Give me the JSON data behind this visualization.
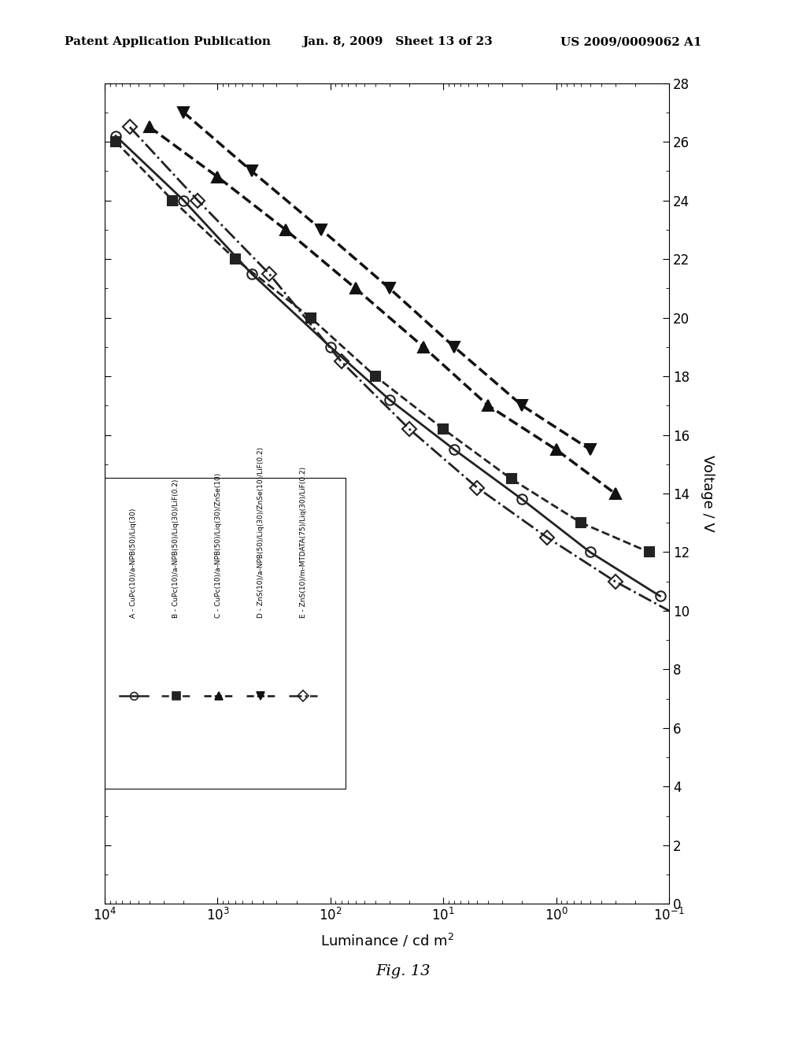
{
  "header_left": "Patent Application Publication",
  "header_mid": "Jan. 8, 2009   Sheet 13 of 23",
  "header_right": "US 2009/0009062 A1",
  "xlabel": "Luminance / cd m²",
  "ylabel": "Voltage / V",
  "fig_label": "Fig. 13",
  "ylim": [
    0,
    28
  ],
  "yticks": [
    0,
    2,
    4,
    6,
    8,
    10,
    12,
    14,
    16,
    18,
    20,
    22,
    24,
    26,
    28
  ],
  "series": [
    {
      "label": "A - CuPc(10)/a-NPB(50)/Liq(30)",
      "linestyle": "solid",
      "marker": "o",
      "color": "#222222",
      "luminance": [
        8000,
        2000,
        500,
        100,
        30,
        8.0,
        2.0,
        0.5,
        0.12
      ],
      "voltage": [
        26.2,
        24.0,
        21.5,
        19.0,
        17.2,
        15.5,
        13.8,
        12.0,
        10.5
      ]
    },
    {
      "label": "B - CuPc(10)/a-NPB(50)/Liq(30)/LiF(0.2)",
      "linestyle": "dashed",
      "marker": "s",
      "color": "#222222",
      "luminance": [
        8000,
        2500,
        700,
        150,
        40,
        10,
        2.5,
        0.6,
        0.15
      ],
      "voltage": [
        26.0,
        24.0,
        22.0,
        20.0,
        18.0,
        16.2,
        14.5,
        13.0,
        12.0
      ]
    },
    {
      "label": "C - CuPc(10)/a-NPB(50)/Liq(30)/ZnSe(10)",
      "linestyle": "dashed",
      "marker": "^",
      "color": "#111111",
      "luminance": [
        4000,
        1000,
        250,
        60,
        15,
        4.0,
        1.0,
        0.3
      ],
      "voltage": [
        26.5,
        24.8,
        23.0,
        21.0,
        19.0,
        17.0,
        15.5,
        14.0
      ]
    },
    {
      "label": "D - ZnS(10)/a-NPB(50)/Liq(30)/ZnSe(10)/LiF(0.2)",
      "linestyle": "dashed",
      "marker": "v",
      "color": "#111111",
      "luminance": [
        2000,
        500,
        120,
        30,
        8.0,
        2.0,
        0.5
      ],
      "voltage": [
        27.0,
        25.0,
        23.0,
        21.0,
        19.0,
        17.0,
        15.5
      ]
    },
    {
      "label": "E - ZnS(10)/m-MTDATA(75)/Liq(30)/LiF(0.2)",
      "linestyle": "dashdot",
      "marker": "D",
      "color": "#222222",
      "luminance": [
        6000,
        1500,
        350,
        80,
        20,
        5.0,
        1.2,
        0.3,
        0.08
      ],
      "voltage": [
        26.5,
        24.0,
        21.5,
        18.5,
        16.2,
        14.2,
        12.5,
        11.0,
        9.8
      ]
    }
  ],
  "legend_labels_rotated": [
    "A - CuPc(10)/a-NPB(50)/Liq(30)",
    "B - CuPc(10)/a-NPB(50)/Liq(30)/LiF(0.2)",
    "C - CuPc(10)/a-NPB(50)/Liq(30)/ZnSe(10)",
    "D - ZnS(10)/a-NPB(50)/Liq(30)/ZnSe(10)/LiF(0.2)",
    "E - ZnS(10)/m-MTDATA(75)/Liq(30)/LiF(0.2)"
  ],
  "background_color": "#ffffff"
}
